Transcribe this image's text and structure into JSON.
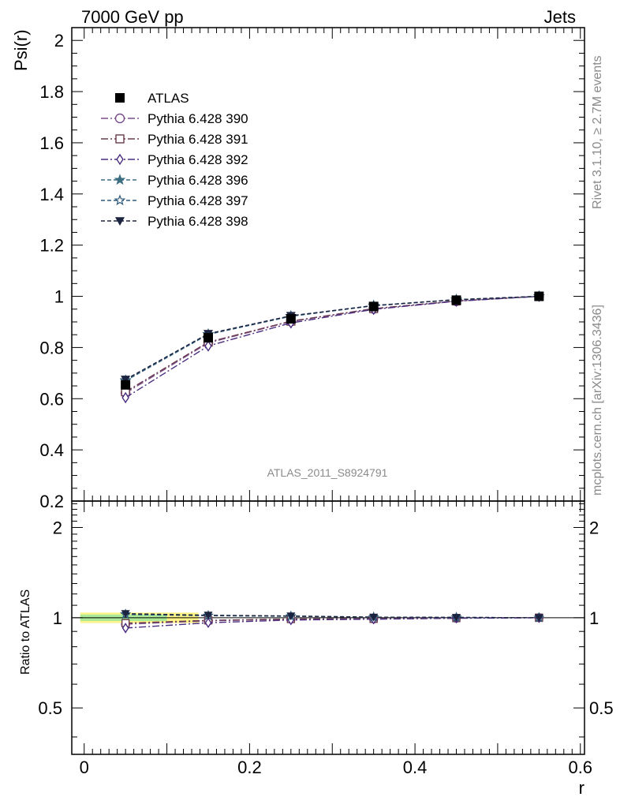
{
  "header": {
    "left": "7000 GeV pp",
    "right": "Jets"
  },
  "side_text": {
    "rivet": "Rivet 3.1.10, ≥ 2.7M events",
    "mcplots": "mcplots.cern.ch [arXiv:1306.3436]"
  },
  "watermark": "ATLAS_2011_S8924791",
  "chart_data": {
    "type": "line",
    "x": [
      0.05,
      0.15,
      0.25,
      0.35,
      0.45,
      0.55
    ],
    "xlabel": "r",
    "xlim": [
      -0.015,
      0.605
    ],
    "xticks": [
      "0",
      "0.2",
      "0.4",
      "0.6"
    ],
    "main": {
      "ylabel": "Psi(r)",
      "ylim": [
        0.2,
        2.05
      ],
      "yticks": [
        "0.2",
        "0.4",
        "0.6",
        "0.8",
        "1",
        "1.2",
        "1.4",
        "1.6",
        "1.8",
        "2"
      ]
    },
    "ratio": {
      "ylabel": "Ratio to ATLAS",
      "ylim": [
        0.35,
        2.45
      ],
      "yticks": [
        "0.5",
        "1",
        "2"
      ],
      "log": true,
      "band": {
        "color": "#fff37a",
        "inner_color": "#9ee89e",
        "half_width_inner": 0.025,
        "half_width_outer": 0.04,
        "x_end": 0.1
      }
    },
    "legend_position": "top-left",
    "series": [
      {
        "name": "ATLAS",
        "values": [
          0.654,
          0.838,
          0.912,
          0.96,
          0.985,
          1.0
        ],
        "color": "#000000",
        "marker": "square-filled",
        "dash": "none"
      },
      {
        "name": "Pythia 6.428 390",
        "values": [
          0.622,
          0.818,
          0.902,
          0.951,
          0.981,
          1.0
        ],
        "color": "#7a4f8c",
        "marker": "circle-open",
        "dash": "9,3,2,3"
      },
      {
        "name": "Pythia 6.428 391",
        "values": [
          0.627,
          0.821,
          0.903,
          0.952,
          0.982,
          1.0
        ],
        "color": "#6b3a4e",
        "marker": "square-open",
        "dash": "9,3,2,3"
      },
      {
        "name": "Pythia 6.428 392",
        "values": [
          0.604,
          0.806,
          0.896,
          0.949,
          0.981,
          1.0
        ],
        "color": "#4a2d80",
        "marker": "diamond-open",
        "dash": "9,3,2,3"
      },
      {
        "name": "Pythia 6.428 396",
        "values": [
          0.67,
          0.851,
          0.922,
          0.963,
          0.987,
          1.0
        ],
        "color": "#3d6e82",
        "marker": "star-filled",
        "dash": "5,3"
      },
      {
        "name": "Pythia 6.428 397",
        "values": [
          0.672,
          0.852,
          0.923,
          0.964,
          0.987,
          1.0
        ],
        "color": "#2e5a7a",
        "marker": "star-open",
        "dash": "5,3"
      },
      {
        "name": "Pythia 6.428 398",
        "values": [
          0.675,
          0.854,
          0.924,
          0.964,
          0.987,
          1.0
        ],
        "color": "#1c2340",
        "marker": "triangle-down-filled",
        "dash": "5,3"
      }
    ]
  }
}
